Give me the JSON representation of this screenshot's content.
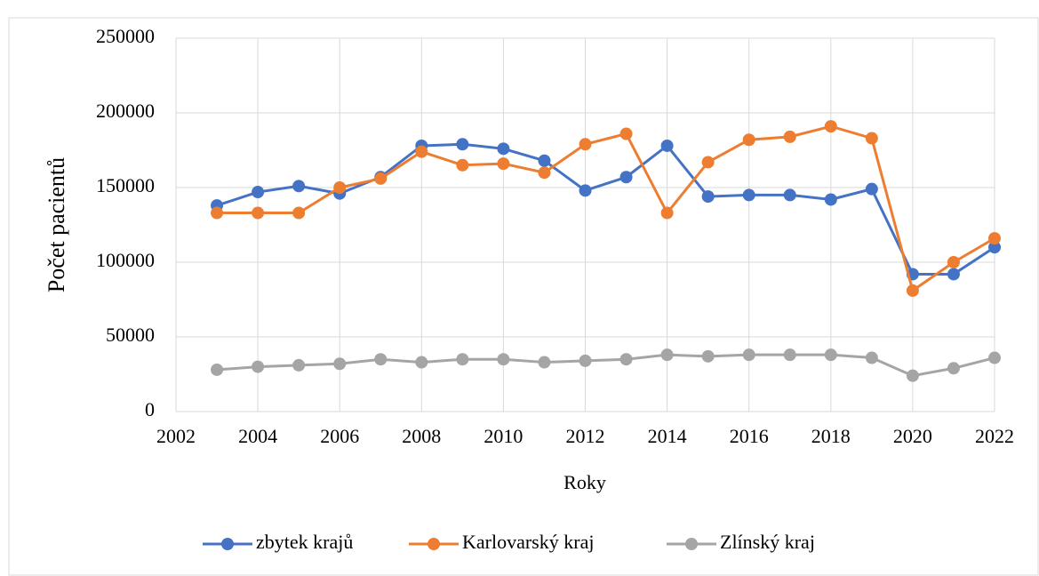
{
  "chart_data": {
    "type": "line",
    "x_label": "Roky",
    "y_label": "Počet pacientů",
    "x": [
      2003,
      2004,
      2005,
      2006,
      2007,
      2008,
      2009,
      2010,
      2011,
      2012,
      2013,
      2014,
      2015,
      2016,
      2017,
      2018,
      2019,
      2020,
      2021,
      2022
    ],
    "series": [
      {
        "name": "zbytek krajů",
        "color": "#4472c4",
        "values": [
          138000,
          147000,
          151000,
          146000,
          157000,
          178000,
          179000,
          176000,
          168000,
          148000,
          157000,
          178000,
          144000,
          145000,
          145000,
          142000,
          149000,
          92000,
          92000,
          110000
        ]
      },
      {
        "name": "Karlovarský kraj",
        "color": "#ed7d31",
        "values": [
          133000,
          133000,
          133000,
          150000,
          156000,
          174000,
          165000,
          166000,
          160000,
          179000,
          186000,
          133000,
          167000,
          182000,
          184000,
          191000,
          183000,
          81000,
          100000,
          116000
        ]
      },
      {
        "name": "Zlínský kraj",
        "color": "#a5a5a5",
        "values": [
          28000,
          30000,
          31000,
          32000,
          35000,
          33000,
          35000,
          35000,
          33000,
          34000,
          35000,
          38000,
          37000,
          38000,
          38000,
          38000,
          36000,
          24000,
          29000,
          36000
        ]
      }
    ],
    "xlim": [
      2002,
      2022
    ],
    "xticks": [
      2002,
      2004,
      2006,
      2008,
      2010,
      2012,
      2014,
      2016,
      2018,
      2020,
      2022
    ],
    "ylim": [
      0,
      250000
    ],
    "yticks": [
      0,
      50000,
      100000,
      150000,
      200000,
      250000
    ],
    "grid": true,
    "legend": "bottom"
  }
}
